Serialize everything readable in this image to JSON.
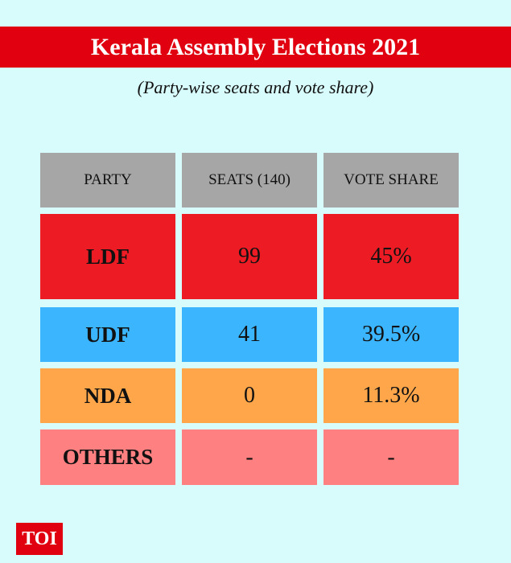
{
  "header": {
    "title": "Kerala Assembly Elections 2021",
    "subtitle": "(Party-wise seats and vote share)"
  },
  "table": {
    "columns": [
      "PARTY",
      "SEATS (140)",
      "VOTE SHARE"
    ],
    "rows": [
      [
        "LDF",
        "99",
        "45%"
      ],
      [
        "UDF",
        "41",
        "39.5%"
      ],
      [
        "NDA",
        "0",
        "11.3%"
      ],
      [
        "OTHERS",
        "-",
        "-"
      ]
    ]
  },
  "footer": {
    "logo": "TOI"
  }
}
